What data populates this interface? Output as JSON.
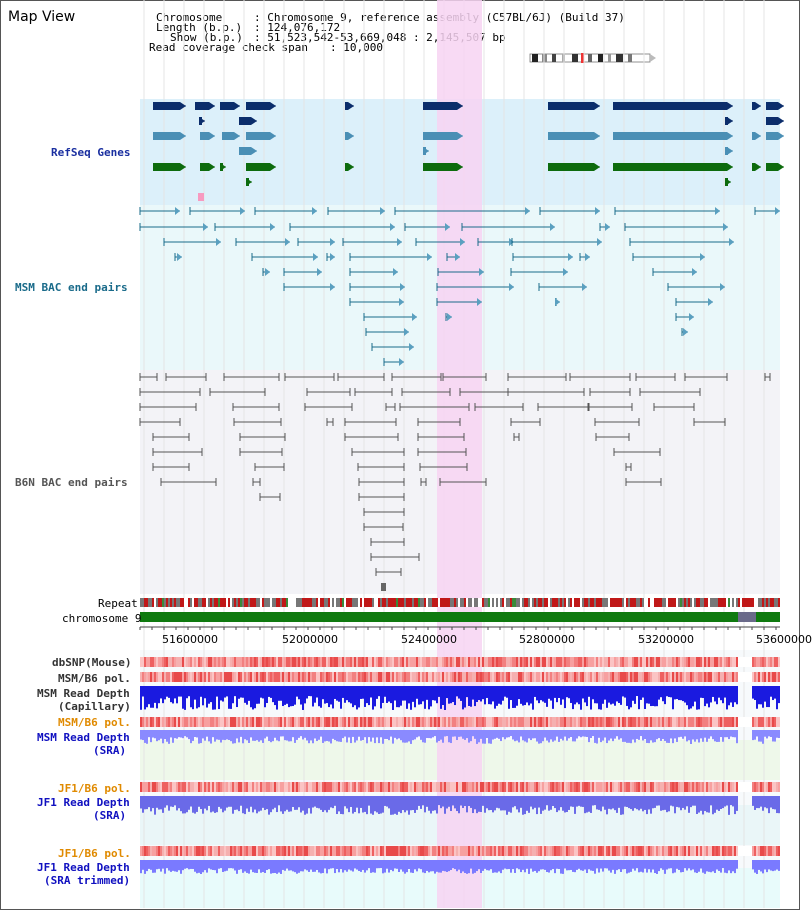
{
  "app": {
    "title": "Map View"
  },
  "info": {
    "chromosome_key": "Chromosome",
    "chromosome_value": ": Chromosome 9, reference assembly (C57BL/6J) (Build 37)",
    "length_key": "Length (b.p.)",
    "length_value": ": 124,076,172",
    "show_key": "Show (b.p.)",
    "show_value": ": 51,523,542-53,669,048 : 2,145,507 bp",
    "coverage_key": "Read coverage check span",
    "coverage_value": ": 10,000"
  },
  "tracks": {
    "refseq": "RefSeq Genes",
    "msm_bac": "MSM BAC end pairs",
    "b6n_bac": "B6N BAC end pairs",
    "repeat": "Repeat",
    "chromosome": "chromosome 9",
    "dbsnp": "dbSNP(Mouse)",
    "msm_b6_pol": "MSM/B6 pol.",
    "msm_read_depth_cap_1": "MSM Read Depth",
    "msm_read_depth_cap_2": "(Capillary)",
    "msm_b6_pol_2": "MSM/B6 pol.",
    "msm_read_depth_sra_1": "MSM Read Depth",
    "msm_read_depth_sra_2": "(SRA)",
    "jf1_b6_pol": "JF1/B6 pol.",
    "jf1_read_depth_sra_1": "JF1 Read Depth",
    "jf1_read_depth_sra_2": "(SRA)",
    "jf1_b6_pol_2": "JF1/B6 pol.",
    "jf1_read_depth_trim_1": "JF1 Read Depth",
    "jf1_read_depth_trim_2": "(SRA trimmed)"
  },
  "axis": {
    "ticks": [
      "51600000",
      "52000000",
      "52400000",
      "52800000",
      "53200000",
      "53600000"
    ]
  },
  "colors": {
    "refseq_bg": "#dcf0fa",
    "msm_bg": "#eaf8fa",
    "b6n_bg": "#f3f3f7",
    "highlight": "#f7d4f2",
    "refseq_label": "#1a2fa0",
    "msm_label": "#1a6b8a",
    "b6n_label": "#555555",
    "orange_label": "#e08a00",
    "blue_label": "#1010c0",
    "gene_navy": "#0b2d6b",
    "gene_teal": "#4a8fb5",
    "gene_green": "#0d6b0d",
    "chrom_green": "#0f7a0f"
  }
}
